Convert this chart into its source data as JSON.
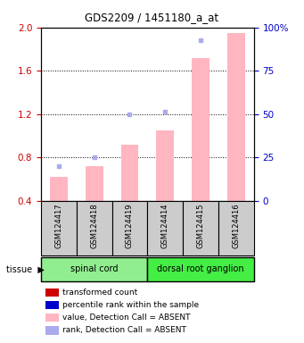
{
  "title": "GDS2209 / 1451180_a_at",
  "samples": [
    "GSM124417",
    "GSM124418",
    "GSM124419",
    "GSM124414",
    "GSM124415",
    "GSM124416"
  ],
  "groups": [
    {
      "name": "spinal cord",
      "indices": [
        0,
        1,
        2
      ],
      "color": "#90EE90"
    },
    {
      "name": "dorsal root ganglion",
      "indices": [
        3,
        4,
        5
      ],
      "color": "#44EE44"
    }
  ],
  "bar_values": [
    0.62,
    0.72,
    0.92,
    1.05,
    1.72,
    1.95
  ],
  "dot_values": [
    0.72,
    0.8,
    1.2,
    1.22,
    1.88,
    null
  ],
  "bar_color": "#FFB6C1",
  "dot_color": "#AAAAEE",
  "ylim_left": [
    0.4,
    2.0
  ],
  "ylim_right": [
    0,
    100
  ],
  "yticks_left": [
    0.4,
    0.8,
    1.2,
    1.6,
    2.0
  ],
  "yticks_right": [
    0,
    25,
    50,
    75,
    100
  ],
  "left_tick_color": "#CC0000",
  "right_tick_color": "#0000CC",
  "legend_items": [
    {
      "label": "transformed count",
      "color": "#CC0000"
    },
    {
      "label": "percentile rank within the sample",
      "color": "#0000CC"
    },
    {
      "label": "value, Detection Call = ABSENT",
      "color": "#FFB6C1"
    },
    {
      "label": "rank, Detection Call = ABSENT",
      "color": "#AAAAEE"
    }
  ],
  "tissue_label": "tissue",
  "sample_box_color": "#CCCCCC",
  "bar_width": 0.5
}
